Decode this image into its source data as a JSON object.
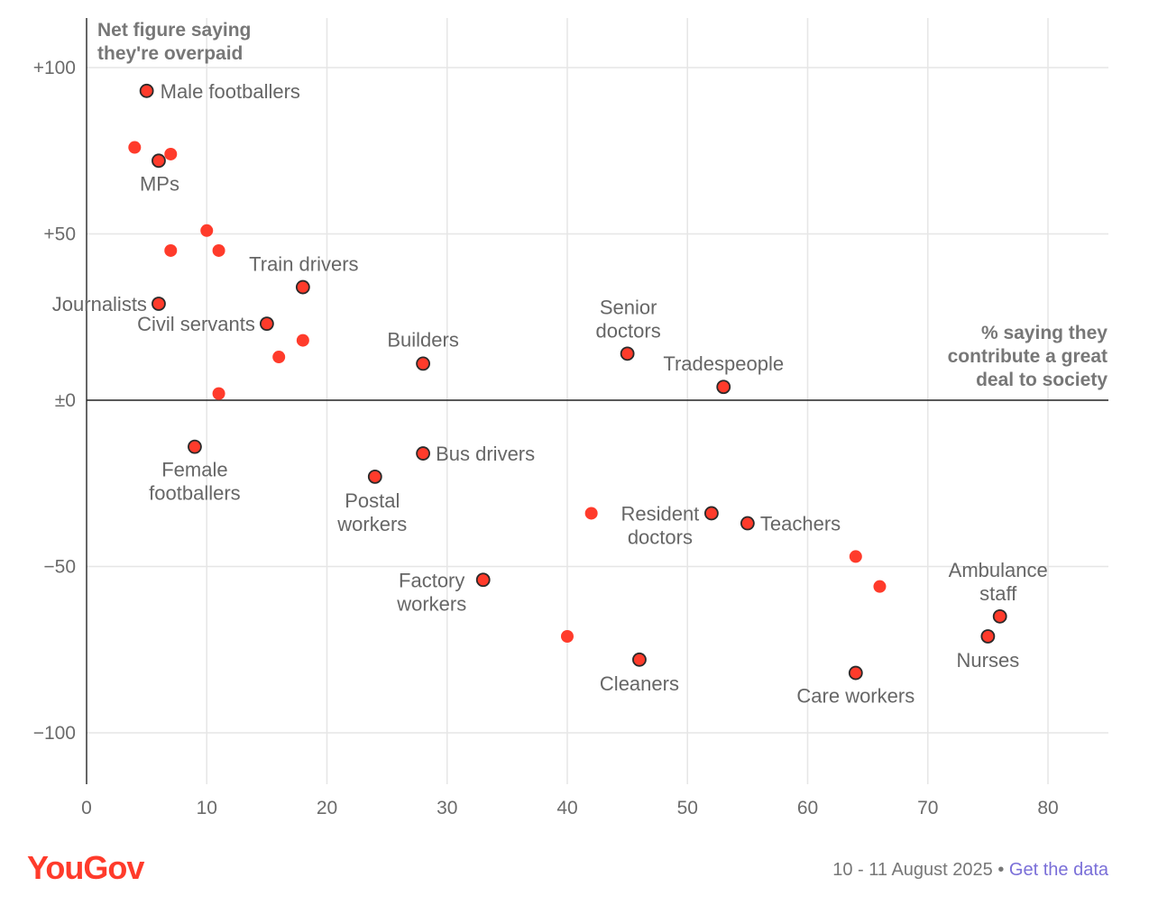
{
  "chart_data": {
    "type": "scatter",
    "y_title_lines": [
      "Net figure saying",
      "they're overpaid"
    ],
    "x_title_lines": [
      "% saying they",
      "contribute a great",
      "deal to society"
    ],
    "xlim": [
      0,
      85
    ],
    "ylim": [
      -115,
      115
    ],
    "x_ticks": [
      0,
      10,
      20,
      30,
      40,
      50,
      60,
      70,
      80
    ],
    "x_tick_labels": [
      "0",
      "10",
      "20",
      "30",
      "40",
      "50",
      "60",
      "70",
      "80"
    ],
    "y_ticks": [
      100,
      50,
      0,
      -50,
      -100
    ],
    "y_tick_labels": [
      "+100",
      "+50",
      "±0",
      "−50",
      "−100"
    ],
    "grid": true,
    "colors": {
      "point": "#ff3b2b",
      "outline": "#2a2a2a",
      "grid": "#e6e6e6"
    },
    "points": [
      {
        "label": "Male footballers",
        "x": 5,
        "y": 93,
        "highlight": true
      },
      {
        "label": "",
        "x": 4,
        "y": 76,
        "highlight": false
      },
      {
        "label": "MPs",
        "x": 6,
        "y": 72,
        "highlight": true
      },
      {
        "label": "",
        "x": 7,
        "y": 74,
        "highlight": false
      },
      {
        "label": "",
        "x": 10,
        "y": 51,
        "highlight": false
      },
      {
        "label": "",
        "x": 7,
        "y": 45,
        "highlight": false
      },
      {
        "label": "",
        "x": 11,
        "y": 45,
        "highlight": false
      },
      {
        "label": "Train drivers",
        "x": 18,
        "y": 34,
        "highlight": true
      },
      {
        "label": "Journalists",
        "x": 6,
        "y": 29,
        "highlight": true
      },
      {
        "label": "Civil servants",
        "x": 15,
        "y": 23,
        "highlight": true
      },
      {
        "label": "",
        "x": 18,
        "y": 18,
        "highlight": false
      },
      {
        "label": "",
        "x": 16,
        "y": 13,
        "highlight": false
      },
      {
        "label": "",
        "x": 11,
        "y": 2,
        "highlight": false
      },
      {
        "label": "Builders",
        "x": 28,
        "y": 11,
        "highlight": true
      },
      {
        "label": "Senior doctors",
        "x": 45,
        "y": 14,
        "highlight": true
      },
      {
        "label": "Tradespeople",
        "x": 53,
        "y": 4,
        "highlight": true
      },
      {
        "label": "Female footballers",
        "x": 9,
        "y": -14,
        "highlight": true
      },
      {
        "label": "Postal workers",
        "x": 24,
        "y": -23,
        "highlight": true
      },
      {
        "label": "Bus drivers",
        "x": 28,
        "y": -16,
        "highlight": true
      },
      {
        "label": "",
        "x": 42,
        "y": -34,
        "highlight": false
      },
      {
        "label": "Resident doctors",
        "x": 52,
        "y": -34,
        "highlight": true
      },
      {
        "label": "Teachers",
        "x": 55,
        "y": -37,
        "highlight": true
      },
      {
        "label": "",
        "x": 64,
        "y": -47,
        "highlight": false
      },
      {
        "label": "",
        "x": 66,
        "y": -56,
        "highlight": false
      },
      {
        "label": "Factory workers",
        "x": 33,
        "y": -54,
        "highlight": true
      },
      {
        "label": "Ambulance staff",
        "x": 76,
        "y": -65,
        "highlight": true
      },
      {
        "label": "Nurses",
        "x": 75,
        "y": -71,
        "highlight": true
      },
      {
        "label": "",
        "x": 40,
        "y": -71,
        "highlight": false
      },
      {
        "label": "Cleaners",
        "x": 46,
        "y": -78,
        "highlight": true
      },
      {
        "label": "Care workers",
        "x": 64,
        "y": -82,
        "highlight": true
      }
    ]
  },
  "footer": {
    "logo": "YouGov",
    "date": "10 - 11 August 2025",
    "separator": "•",
    "link": "Get the data"
  }
}
